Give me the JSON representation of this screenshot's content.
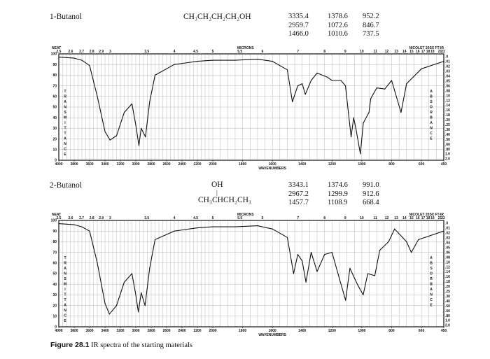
{
  "spectra": [
    {
      "name": "1-Butanol",
      "formula": "CH3CH2CH2CH2OH",
      "formula_display": "CH₃CH₂CH₂CH₂OH",
      "peak_columns": [
        [
          "3335.4",
          "2959.7",
          "1466.0"
        ],
        [
          "1378.6",
          "1072.6",
          "1010.6"
        ],
        [
          "952.2",
          "846.7",
          "737.5"
        ]
      ]
    },
    {
      "name": "2-Butanol",
      "formula_top": "OH",
      "formula_display": "CH₃CHCH₂CH₃",
      "peak_columns": [
        [
          "3343.1",
          "2967.2",
          "1457.7"
        ],
        [
          "1374.6",
          "1299.9",
          "1108.9"
        ],
        [
          "991.0",
          "912.6",
          "668.4"
        ]
      ]
    }
  ],
  "axis_text": {
    "neat": "NEAT",
    "microns": "MICRONS",
    "instrument": "NICOLET 20SX FT-IR",
    "wavenumbers": "WAVENUMBERS",
    "transmittance_letters": [
      "T",
      "R",
      "A",
      "N",
      "S",
      "M",
      "I",
      "T",
      "T",
      "A",
      "N",
      "C",
      "E"
    ],
    "absorbance_letters": [
      "A",
      "B",
      "S",
      "O",
      "R",
      "B",
      "A",
      "N",
      "C",
      "E"
    ]
  },
  "caption": {
    "label": "Figure 28.1",
    "text": " IR spectra of the starting materials"
  },
  "chart_data": [
    {
      "type": "line",
      "title": "1-Butanol",
      "xlabel": "WAVENUMBERS",
      "ylabel": "TRANSMITTANCE",
      "top_axis_label": "MICRONS",
      "grid": true,
      "x_ticks": [
        "4000",
        "3800",
        "3600",
        "3400",
        "3200",
        "3000",
        "2800",
        "2600",
        "2400",
        "2200",
        "2000",
        "1800",
        "1600",
        "1400",
        "1200",
        "1000",
        "800",
        "600",
        "450"
      ],
      "y_ticks": [
        0,
        10,
        20,
        30,
        40,
        50,
        60,
        70,
        80,
        90,
        100
      ],
      "micron_ticks": [
        "2.5",
        "2.6",
        "2.7",
        "2.8",
        "2.9",
        "3",
        "3.5",
        "4",
        "4.5",
        "5",
        "5.5",
        "6",
        "7",
        "8",
        "9",
        "10",
        "11",
        "12",
        "13",
        "14",
        "15",
        "16",
        "17",
        "18",
        "19",
        "21",
        "22"
      ],
      "absorbance_ticks": [
        ".0",
        ".01",
        ".02",
        ".03",
        ".04",
        ".05",
        ".06",
        ".08",
        ".10",
        ".12",
        ".14",
        ".16",
        ".18",
        ".20",
        ".25",
        ".30",
        ".40",
        ".50",
        ".60",
        ".80",
        "1.0",
        "2.0"
      ],
      "xlim": [
        4000,
        450
      ],
      "ylim": [
        0,
        100
      ],
      "x": [
        4000,
        3800,
        3700,
        3600,
        3500,
        3400,
        3335,
        3250,
        3150,
        3050,
        3000,
        2960,
        2930,
        2875,
        2820,
        2750,
        2500,
        2200,
        2000,
        1850,
        1700,
        1600,
        1500,
        1466,
        1430,
        1400,
        1379,
        1340,
        1300,
        1230,
        1200,
        1140,
        1110,
        1090,
        1072,
        1055,
        1040,
        1010,
        990,
        952,
        940,
        900,
        846,
        800,
        737,
        700,
        600,
        450
      ],
      "y": [
        97,
        96,
        94,
        89,
        60,
        27,
        19,
        23,
        45,
        53,
        33,
        14,
        30,
        22,
        55,
        80,
        90,
        93,
        94,
        94,
        95,
        93,
        85,
        55,
        70,
        72,
        62,
        75,
        82,
        78,
        75,
        75,
        70,
        45,
        22,
        40,
        30,
        6,
        35,
        45,
        58,
        68,
        67,
        75,
        45,
        72,
        86,
        93
      ]
    },
    {
      "type": "line",
      "title": "2-Butanol",
      "xlabel": "WAVENUMBERS",
      "ylabel": "TRANSMITTANCE",
      "top_axis_label": "MICRONS",
      "grid": true,
      "x_ticks": [
        "4000",
        "3800",
        "3600",
        "3400",
        "3200",
        "3000",
        "2800",
        "2600",
        "2400",
        "2200",
        "2000",
        "1800",
        "1600",
        "1400",
        "1200",
        "1000",
        "800",
        "600",
        "450"
      ],
      "y_ticks": [
        0,
        10,
        20,
        30,
        40,
        50,
        60,
        70,
        80,
        90,
        100
      ],
      "micron_ticks": [
        "2.5",
        "2.6",
        "2.7",
        "2.8",
        "2.9",
        "3",
        "3.5",
        "4",
        "4.5",
        "5",
        "5.5",
        "6",
        "7",
        "8",
        "9",
        "10",
        "11",
        "12",
        "13",
        "14",
        "15",
        "16",
        "17",
        "18",
        "19",
        "21",
        "22"
      ],
      "absorbance_ticks": [
        ".0",
        ".01",
        ".02",
        ".03",
        ".04",
        ".05",
        ".06",
        ".08",
        ".10",
        ".12",
        ".14",
        ".16",
        ".18",
        ".20",
        ".25",
        ".30",
        ".40",
        ".50",
        ".60",
        ".80",
        "1.0",
        "2.0"
      ],
      "xlim": [
        4000,
        450
      ],
      "ylim": [
        0,
        100
      ],
      "x": [
        4000,
        3800,
        3700,
        3600,
        3500,
        3400,
        3343,
        3250,
        3150,
        3050,
        3000,
        2967,
        2930,
        2880,
        2820,
        2750,
        2500,
        2200,
        2000,
        1850,
        1700,
        1600,
        1500,
        1458,
        1430,
        1400,
        1375,
        1340,
        1300,
        1250,
        1200,
        1150,
        1109,
        1080,
        1030,
        991,
        960,
        913,
        880,
        820,
        780,
        700,
        668,
        620,
        450
      ],
      "y": [
        97,
        96,
        94,
        90,
        60,
        22,
        12,
        20,
        42,
        50,
        30,
        14,
        32,
        20,
        55,
        82,
        90,
        93,
        94,
        94,
        95,
        92,
        84,
        50,
        68,
        62,
        42,
        70,
        52,
        68,
        70,
        45,
        25,
        55,
        40,
        30,
        50,
        48,
        72,
        80,
        92,
        80,
        70,
        82,
        90
      ]
    }
  ]
}
